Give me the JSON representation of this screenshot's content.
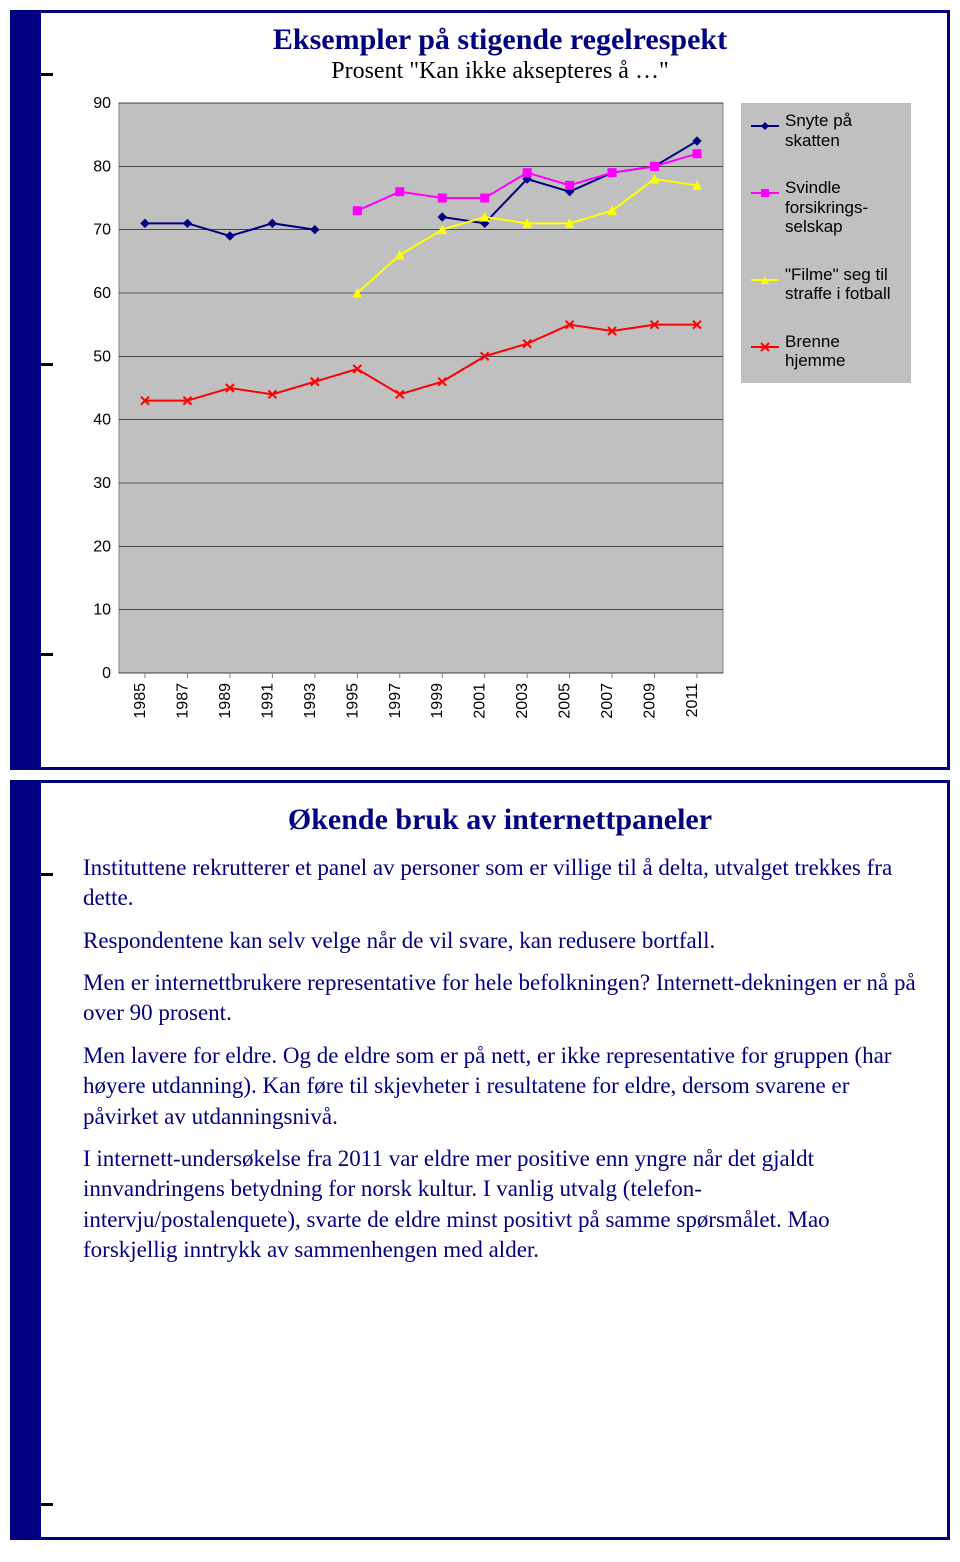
{
  "slide1": {
    "title": "Eksempler på stigende regelrespekt",
    "subtitle": "Prosent \"Kan ikke aksepteres å …\"",
    "chart": {
      "type": "line",
      "ylim": [
        0,
        90
      ],
      "ytick_step": 10,
      "categories": [
        "1985",
        "1987",
        "1989",
        "1991",
        "1993",
        "1995",
        "1997",
        "1999",
        "2001",
        "2003",
        "2005",
        "2007",
        "2009",
        "2011"
      ],
      "plot_bg": "#c0c0c0",
      "grid_color": "#000000",
      "line_width": 2,
      "marker_size": 8,
      "axis_fontsize": 16,
      "series": [
        {
          "name": "Snyte på skatten",
          "color": "#000080",
          "marker": "diamond",
          "values": [
            71,
            71,
            69,
            71,
            70,
            null,
            null,
            72,
            71,
            78,
            76,
            79,
            80,
            84
          ]
        },
        {
          "name": "Svindle forsikrings-selskap",
          "color": "#ff00ff",
          "marker": "square",
          "values": [
            null,
            null,
            null,
            null,
            null,
            73,
            76,
            75,
            75,
            79,
            77,
            79,
            80,
            82
          ]
        },
        {
          "name": "\"Filme\" seg til straffe i fotball",
          "color": "#ffff00",
          "marker": "triangle",
          "values": [
            null,
            null,
            null,
            null,
            null,
            60,
            66,
            70,
            72,
            71,
            71,
            73,
            78,
            77
          ]
        },
        {
          "name": "Brenne hjemme",
          "color": "#ff0000",
          "marker": "x",
          "values": [
            43,
            43,
            45,
            44,
            46,
            48,
            44,
            46,
            50,
            52,
            55,
            54,
            55,
            55
          ]
        }
      ]
    }
  },
  "slide2": {
    "title": "Økende bruk av internettpaneler",
    "paragraphs": [
      "Instituttene rekrutterer et panel av personer som er villige til å delta, utvalget trekkes fra dette.",
      "Respondentene kan selv velge når de vil svare, kan redusere bortfall.",
      "Men er internettbrukere representative for hele befolkningen? Internett-dekningen er nå på over 90 prosent.",
      "Men lavere for eldre. Og de eldre som er på nett, er ikke representative for gruppen (har høyere utdanning). Kan føre til skjevheter i resultatene for eldre, dersom svarene er påvirket av utdanningsnivå.",
      "I internett-undersøkelse fra 2011 var eldre mer positive enn yngre når det gjaldt innvandringens betydning for norsk kultur. I vanlig utvalg (telefon-intervju/postalenquete), svarte de eldre minst positivt på  samme spørsmålet. Mao forskjellig inntrykk av sammenhengen med alder."
    ]
  }
}
